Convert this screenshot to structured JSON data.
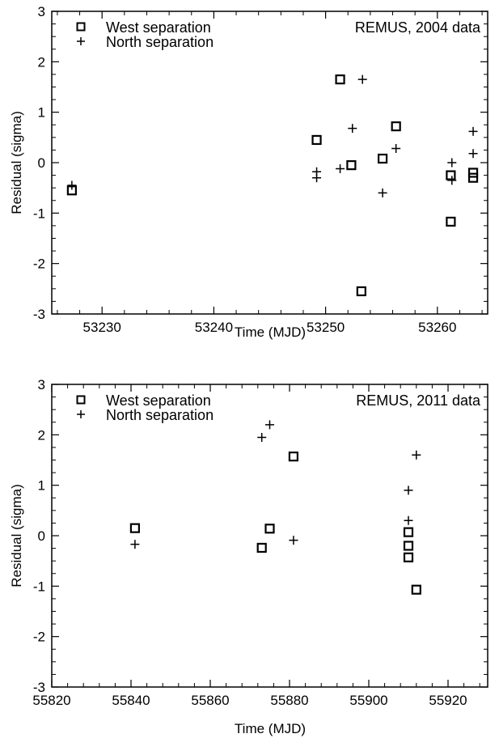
{
  "chart_data": [
    {
      "type": "scatter",
      "title": "",
      "annotation": "REMUS, 2004 data",
      "xlabel": "Time (MJD)",
      "ylabel": "Residual (sigma)",
      "xlim": [
        53225.5,
        53264.5
      ],
      "ylim": [
        -3,
        3
      ],
      "x_ticks": [
        53230,
        53240,
        53250,
        53260
      ],
      "y_ticks": [
        -3,
        -2,
        -1,
        0,
        1,
        2,
        3
      ],
      "x_tick_labels": [
        "53230",
        "53240",
        "53250",
        "53260"
      ],
      "y_tick_labels": [
        "-3",
        "-2",
        "-1",
        "0",
        "1",
        "2",
        "3"
      ],
      "legend_position": "top-left",
      "series": [
        {
          "name": "West separation",
          "marker": "square",
          "points": [
            [
              53227.3,
              -0.55
            ],
            [
              53249.2,
              0.45
            ],
            [
              53251.3,
              1.65
            ],
            [
              53252.3,
              -0.05
            ],
            [
              53253.2,
              -2.55
            ],
            [
              53255.1,
              0.08
            ],
            [
              53256.3,
              0.72
            ],
            [
              53261.2,
              -0.25
            ],
            [
              53261.2,
              -1.17
            ],
            [
              53263.2,
              -0.2
            ],
            [
              53263.2,
              -0.3
            ]
          ]
        },
        {
          "name": "North separation",
          "marker": "plus",
          "points": [
            [
              53227.3,
              -0.45
            ],
            [
              53249.2,
              -0.18
            ],
            [
              53249.2,
              -0.3
            ],
            [
              53251.3,
              -0.12
            ],
            [
              53252.4,
              0.68
            ],
            [
              53253.3,
              1.65
            ],
            [
              53255.1,
              -0.6
            ],
            [
              53256.3,
              0.28
            ],
            [
              53261.3,
              0.0
            ],
            [
              53261.3,
              -0.35
            ],
            [
              53263.2,
              0.62
            ],
            [
              53263.2,
              0.18
            ]
          ]
        }
      ]
    },
    {
      "type": "scatter",
      "title": "",
      "annotation": "REMUS, 2011 data",
      "xlabel": "Time (MJD)",
      "ylabel": "Residual (sigma)",
      "xlim": [
        55820,
        55930
      ],
      "ylim": [
        -3,
        3
      ],
      "x_ticks": [
        55820,
        55840,
        55860,
        55880,
        55900,
        55920
      ],
      "y_ticks": [
        -3,
        -2,
        -1,
        0,
        1,
        2,
        3
      ],
      "x_tick_labels": [
        "55820",
        "55840",
        "55860",
        "55880",
        "55900",
        "55920"
      ],
      "y_tick_labels": [
        "-3",
        "-2",
        "-1",
        "0",
        "1",
        "2",
        "3"
      ],
      "legend_position": "top-left",
      "series": [
        {
          "name": "West separation",
          "marker": "square",
          "points": [
            [
              55841,
              0.15
            ],
            [
              55873,
              -0.24
            ],
            [
              55875,
              0.14
            ],
            [
              55881,
              1.57
            ],
            [
              55910,
              0.07
            ],
            [
              55910,
              -0.2
            ],
            [
              55910,
              -0.43
            ],
            [
              55912,
              -1.07
            ]
          ]
        },
        {
          "name": "North separation",
          "marker": "plus",
          "points": [
            [
              55841,
              -0.17
            ],
            [
              55873,
              1.95
            ],
            [
              55875,
              2.2
            ],
            [
              55881,
              -0.09
            ],
            [
              55910,
              0.9
            ],
            [
              55910,
              0.3
            ],
            [
              55912,
              1.6
            ]
          ]
        }
      ]
    }
  ]
}
